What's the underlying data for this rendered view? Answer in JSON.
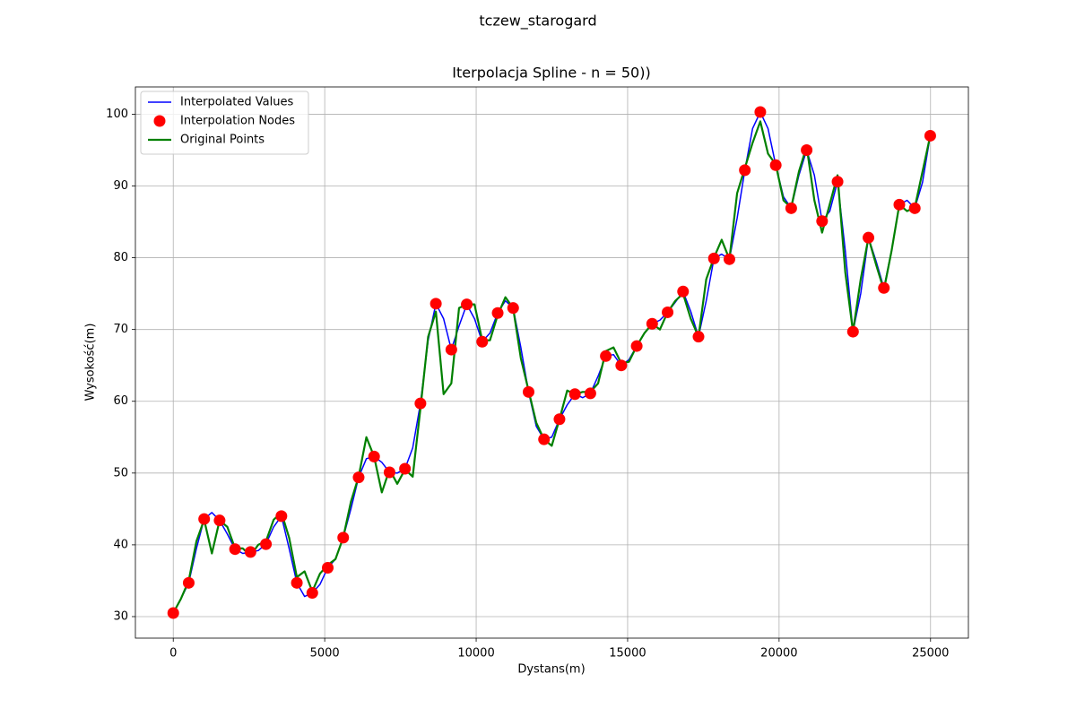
{
  "chart_data": {
    "type": "line",
    "suptitle": "tczew_starogard",
    "title": "Iterpolacja Spline - n = 50))",
    "xlabel": "Dystans(m)",
    "ylabel": "Wysokość(m)",
    "xlim": [
      -1250,
      26250
    ],
    "ylim": [
      27.0,
      103.8
    ],
    "xticks": [
      0,
      5000,
      10000,
      15000,
      20000,
      25000
    ],
    "yticks": [
      30,
      40,
      50,
      60,
      70,
      80,
      90,
      100
    ],
    "grid": true,
    "legend": "upper left",
    "series": [
      {
        "name": "Interpolated Values",
        "color": "#0000ff",
        "style": "line",
        "width": 1.5,
        "x": [
          0,
          255,
          510,
          765,
          1020,
          1275,
          1530,
          1785,
          2040,
          2295,
          2550,
          2805,
          3060,
          3315,
          3570,
          3825,
          4080,
          4335,
          4590,
          4845,
          5100,
          5355,
          5610,
          5865,
          6120,
          6375,
          6630,
          6885,
          7140,
          7395,
          7650,
          7905,
          8160,
          8415,
          8670,
          8925,
          9180,
          9435,
          9690,
          9945,
          10200,
          10455,
          10710,
          10965,
          11220,
          11475,
          11730,
          11985,
          12240,
          12495,
          12750,
          13005,
          13260,
          13515,
          13770,
          14025,
          14280,
          14535,
          14790,
          15045,
          15300,
          15555,
          15810,
          16065,
          16320,
          16575,
          16830,
          17085,
          17340,
          17595,
          17850,
          18105,
          18360,
          18615,
          18870,
          19125,
          19380,
          19635,
          19890,
          20145,
          20400,
          20655,
          20910,
          21165,
          21420,
          21675,
          21930,
          22185,
          22440,
          22695,
          22950,
          23205,
          23460,
          23715,
          23970,
          24225,
          24480,
          24735,
          24990
        ],
        "values": [
          30.5,
          32.5,
          34.7,
          39.5,
          43.6,
          44.5,
          43.4,
          41.5,
          39.4,
          38.8,
          39.0,
          39.2,
          40.1,
          42.5,
          44.0,
          39.5,
          34.7,
          32.8,
          33.3,
          34.5,
          36.8,
          38.0,
          41.0,
          45.0,
          49.4,
          52.0,
          52.3,
          51.5,
          50.1,
          50.0,
          50.6,
          53.5,
          59.7,
          68.5,
          73.6,
          71.5,
          67.2,
          70.5,
          73.5,
          71.5,
          68.3,
          69.5,
          72.3,
          74.0,
          73.0,
          67.5,
          61.3,
          56.5,
          54.7,
          55.0,
          57.5,
          59.5,
          61.0,
          60.5,
          61.1,
          63.5,
          66.3,
          66.5,
          65.0,
          65.8,
          67.7,
          69.5,
          70.8,
          71.3,
          72.4,
          73.8,
          75.3,
          72.5,
          69.0,
          74.0,
          79.9,
          80.5,
          79.8,
          85.5,
          92.2,
          98.0,
          100.3,
          98.0,
          92.9,
          88.5,
          86.9,
          91.5,
          95.0,
          91.5,
          85.1,
          86.5,
          90.6,
          81.0,
          69.7,
          75.0,
          82.8,
          79.5,
          75.8,
          81.0,
          87.4,
          88.0,
          86.9,
          90.5,
          97.0
        ]
      },
      {
        "name": "Interpolation Nodes",
        "color": "#ff0000",
        "style": "marker",
        "x": [
          0,
          510,
          1020,
          1530,
          2040,
          2550,
          3060,
          3570,
          4080,
          4590,
          5100,
          5610,
          6120,
          6630,
          7140,
          7650,
          8160,
          8670,
          9180,
          9690,
          10200,
          10710,
          11220,
          11730,
          12240,
          12750,
          13260,
          13770,
          14280,
          14790,
          15300,
          15810,
          16320,
          16830,
          17340,
          17850,
          18360,
          18870,
          19380,
          19890,
          20400,
          20910,
          21420,
          21930,
          22440,
          22950,
          23460,
          23970,
          24480,
          24990
        ],
        "values": [
          30.5,
          34.7,
          43.6,
          43.4,
          39.4,
          39.0,
          40.1,
          44.0,
          34.7,
          33.3,
          36.8,
          41.0,
          49.4,
          52.3,
          50.1,
          50.6,
          59.7,
          73.6,
          67.2,
          73.5,
          68.3,
          72.3,
          73.0,
          61.3,
          54.7,
          57.5,
          61.0,
          61.1,
          66.3,
          65.0,
          67.7,
          70.8,
          72.4,
          75.3,
          69.0,
          79.9,
          79.8,
          92.2,
          100.3,
          92.9,
          86.9,
          95.0,
          85.1,
          90.6,
          69.7,
          82.8,
          75.8,
          87.4,
          86.9,
          97.0
        ]
      },
      {
        "name": "Original Points",
        "color": "#008000",
        "style": "line",
        "width": 2.2,
        "x": [
          0,
          255,
          510,
          765,
          1020,
          1275,
          1530,
          1785,
          2040,
          2295,
          2550,
          2805,
          3060,
          3315,
          3570,
          3825,
          4080,
          4335,
          4590,
          4845,
          5100,
          5355,
          5610,
          5865,
          6120,
          6375,
          6630,
          6885,
          7140,
          7395,
          7650,
          7905,
          8160,
          8415,
          8670,
          8925,
          9180,
          9435,
          9690,
          9945,
          10200,
          10455,
          10710,
          10965,
          11220,
          11475,
          11730,
          11985,
          12240,
          12495,
          12750,
          13005,
          13260,
          13515,
          13770,
          14025,
          14280,
          14535,
          14790,
          15045,
          15300,
          15555,
          15810,
          16065,
          16320,
          16575,
          16830,
          17085,
          17340,
          17595,
          17850,
          18105,
          18360,
          18615,
          18870,
          19125,
          19380,
          19635,
          19890,
          20145,
          20400,
          20655,
          20910,
          21165,
          21420,
          21675,
          21930,
          22185,
          22440,
          22695,
          22950,
          23205,
          23460,
          23715,
          23970,
          24225,
          24480,
          24735,
          24990
        ],
        "values": [
          30.5,
          32.5,
          35,
          40.5,
          43.5,
          38.8,
          43.4,
          42.5,
          39.5,
          39.5,
          38.5,
          40,
          40.5,
          43.5,
          44.5,
          41,
          35.5,
          36.3,
          33.5,
          36,
          37.2,
          38,
          41,
          46,
          49.5,
          55,
          52.3,
          47.3,
          50.5,
          48.5,
          50.5,
          49.5,
          59,
          69,
          72.5,
          61,
          62.5,
          73,
          73.5,
          73.5,
          68.5,
          68.5,
          72,
          74.5,
          73,
          66,
          61.5,
          57,
          54.7,
          53.8,
          57.5,
          61.5,
          61,
          61.3,
          61.3,
          62.5,
          67,
          67.5,
          65.3,
          65.5,
          67.7,
          69.5,
          70.8,
          70,
          72.4,
          74,
          75,
          71.5,
          69,
          77,
          80,
          82.5,
          79.8,
          89,
          92.5,
          96,
          99,
          94.5,
          93,
          88,
          87,
          92,
          95.5,
          88,
          83.5,
          87.5,
          91.5,
          78,
          69.7,
          77,
          82.8,
          79,
          75.5,
          81,
          87.4,
          86.5,
          87,
          92,
          97
        ]
      }
    ]
  }
}
